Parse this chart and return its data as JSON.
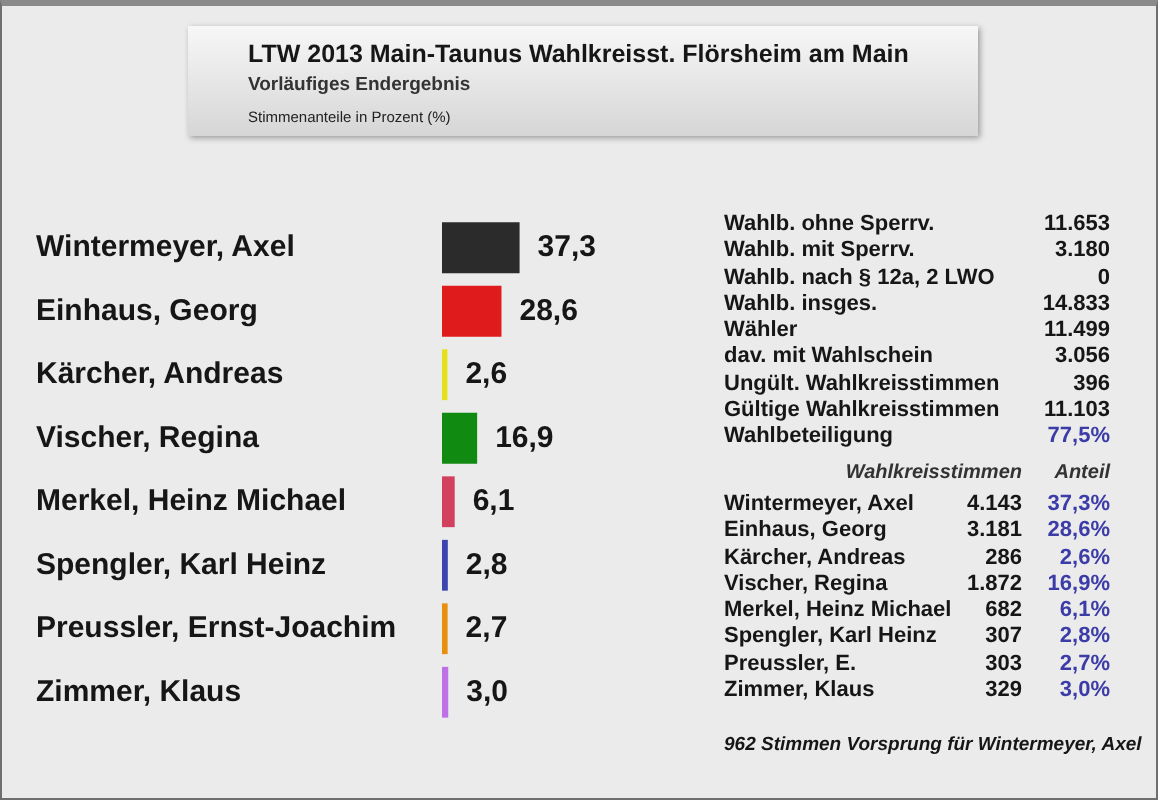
{
  "chart_data": {
    "type": "bar",
    "orientation": "horizontal",
    "title": "LTW 2013 Main-Taunus Wahlkreisst. Flörsheim am Main",
    "subtitle": "Vorläufiges Endergebnis",
    "categories": [
      "Wintermeyer, Axel",
      "Einhaus, Georg",
      "Kärcher, Andreas",
      "Vischer, Regina",
      "Merkel, Heinz Michael",
      "Spengler, Karl Heinz",
      "Preussler, Ernst-Joachim",
      "Zimmer, Klaus"
    ],
    "values": [
      37.3,
      28.6,
      2.6,
      16.9,
      6.1,
      2.8,
      2.7,
      3.0
    ],
    "value_labels": [
      "37,3",
      "28,6",
      "2,6",
      "16,9",
      "6,1",
      "2,8",
      "2,7",
      "3,0"
    ],
    "colors": [
      "#2b2b2b",
      "#e01b1b",
      "#e6e01a",
      "#108a10",
      "#d2405e",
      "#3c44b0",
      "#e8900e",
      "#c070e6"
    ],
    "tick_labels": "y",
    "annotations": [
      "Stimmenanteile in Prozent (%)",
      "Wahlb. ohne Sperrv.",
      "11.653",
      "Wahlb. mit Sperrv.",
      "3.180",
      "Wahlb. nach § 12a, 2 LWO",
      "0",
      "Wahlb. insges.",
      "14.833",
      "Wähler",
      "11.499",
      "dav. mit Wahlschein",
      "3.056",
      "Ungült. Wahlkreisstimmen",
      "396",
      "Gültige Wahlkreisstimmen",
      "11.103",
      "Wahlbeteiligung",
      "77,5%",
      "Wahlkreisstimmen",
      "Anteil",
      "Wintermeyer, Axel",
      "4.143",
      "37,3%",
      "Einhaus, Georg",
      "3.181",
      "28,6%",
      "Kärcher, Andreas",
      "286",
      "2,6%",
      "Vischer, Regina",
      "1.872",
      "16,9%",
      "Merkel, Heinz Michael",
      "682",
      "6,1%",
      "Spengler, Karl Heinz",
      "307",
      "2,8%",
      "Preussler, E.",
      "303",
      "2,7%",
      "Zimmer, Klaus",
      "329",
      "3,0%",
      "962 Stimmen Vorsprung für Wintermeyer, Axel"
    ]
  }
}
